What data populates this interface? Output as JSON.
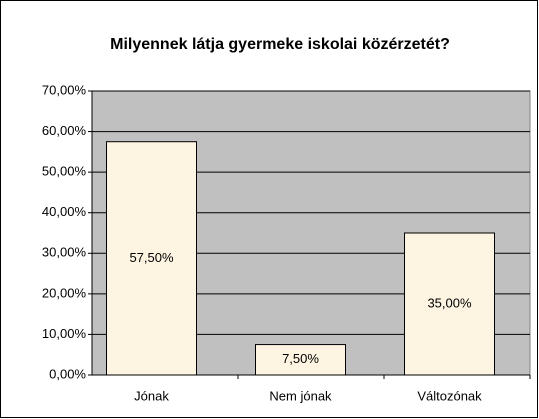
{
  "chart_data": {
    "type": "bar",
    "title": "Milyennek látja gyermeke iskolai közérzetét?",
    "categories": [
      "Jónak",
      "Nem jónak",
      "Változónak"
    ],
    "values": [
      57.5,
      7.5,
      35
    ],
    "value_labels": [
      "57,50%",
      "7,50%",
      "35,00%"
    ],
    "color": "#fdf5e2",
    "ylim": [
      0,
      70
    ],
    "yticks": [
      {
        "value": 0,
        "label": "0,00%"
      },
      {
        "value": 10,
        "label": "10,00%"
      },
      {
        "value": 20,
        "label": "20,00%"
      },
      {
        "value": 30,
        "label": "30,00%"
      },
      {
        "value": 40,
        "label": "40,00%"
      },
      {
        "value": 50,
        "label": "50,00%"
      },
      {
        "value": 60,
        "label": "60,00%"
      },
      {
        "value": 70,
        "label": "70,00%"
      }
    ],
    "grid": true
  }
}
